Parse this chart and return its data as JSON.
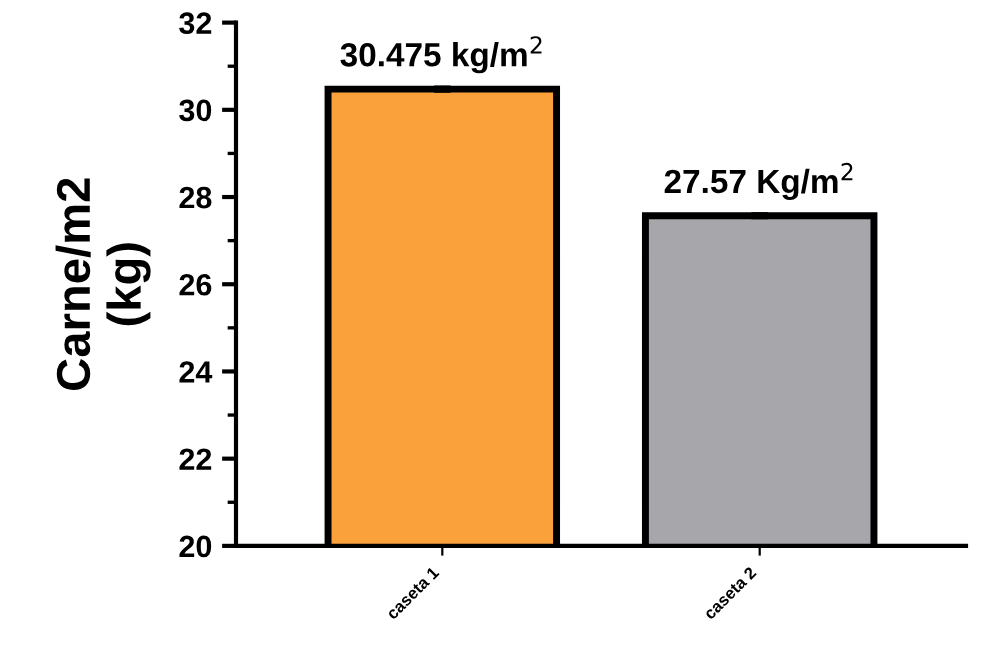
{
  "chart_data": {
    "type": "bar",
    "ylabel": "Carne/m2\n(kg)",
    "categories": [
      "caseta 1",
      "caseta 2"
    ],
    "values": [
      30.475,
      27.57
    ],
    "colors": [
      "#fba13c",
      "#a7a6ab"
    ],
    "errors": [
      0.05,
      0.05
    ],
    "value_labels": [
      "30.475 kg/m$^{2}$",
      "27.57 Kg/m$^{2}$"
    ],
    "ylim": [
      20,
      32
    ],
    "yticks": [
      20,
      22,
      24,
      26,
      28,
      30,
      32
    ],
    "grid": false
  }
}
